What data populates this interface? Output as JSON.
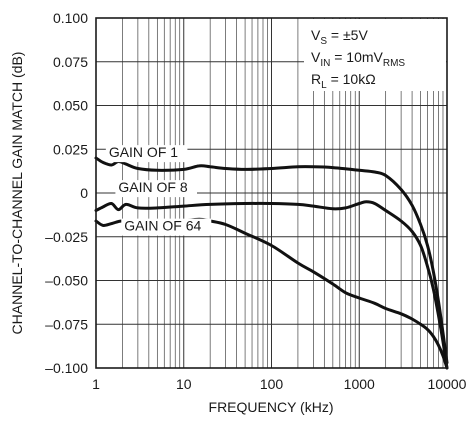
{
  "chart_data": {
    "type": "line",
    "title": "",
    "xlabel": "FREQUENCY (kHz)",
    "ylabel": "CHANNEL-TO-CHANNEL GAIN MATCH (dB)",
    "xscale": "log",
    "xlim": [
      1,
      10000
    ],
    "ylim": [
      -0.1,
      0.1
    ],
    "grid": true,
    "x_ticks": [
      {
        "value": 1,
        "label": "1"
      },
      {
        "value": 10,
        "label": "10"
      },
      {
        "value": 100,
        "label": "100"
      },
      {
        "value": 1000,
        "label": "1000"
      },
      {
        "value": 10000,
        "label": "10000"
      }
    ],
    "y_ticks": [
      {
        "value": 0.1,
        "label": "0.100"
      },
      {
        "value": 0.075,
        "label": "0.075"
      },
      {
        "value": 0.05,
        "label": "0.050"
      },
      {
        "value": 0.025,
        "label": "0.025"
      },
      {
        "value": 0,
        "label": "0"
      },
      {
        "value": -0.025,
        "label": "–0.025"
      },
      {
        "value": -0.05,
        "label": "–0.050"
      },
      {
        "value": -0.075,
        "label": "–0.075"
      },
      {
        "value": -0.1,
        "label": "–0.100"
      }
    ],
    "conditions": [
      {
        "main": "V",
        "sub": "S",
        "rest": " = ±5V"
      },
      {
        "main": "V",
        "sub": "IN",
        "rest": " = 10mV",
        "sub2": "RMS"
      },
      {
        "main": "R",
        "sub": "L",
        "rest": " = 10kΩ"
      }
    ],
    "series": [
      {
        "name": "GAIN OF 1",
        "points": [
          [
            1,
            0.02
          ],
          [
            1.2,
            0.0175
          ],
          [
            1.5,
            0.016
          ],
          [
            1.8,
            0.018
          ],
          [
            2.2,
            0.0165
          ],
          [
            3,
            0.014
          ],
          [
            5,
            0.013
          ],
          [
            10,
            0.0135
          ],
          [
            15,
            0.0155
          ],
          [
            20,
            0.015
          ],
          [
            30,
            0.014
          ],
          [
            50,
            0.0135
          ],
          [
            100,
            0.014
          ],
          [
            200,
            0.015
          ],
          [
            300,
            0.015
          ],
          [
            500,
            0.0145
          ],
          [
            1000,
            0.013
          ],
          [
            1500,
            0.012
          ],
          [
            2000,
            0.01
          ],
          [
            3000,
            0.002
          ],
          [
            4000,
            -0.007
          ],
          [
            5000,
            -0.018
          ],
          [
            6000,
            -0.03
          ],
          [
            7000,
            -0.045
          ],
          [
            8000,
            -0.062
          ],
          [
            9000,
            -0.08
          ],
          [
            10000,
            -0.097
          ]
        ]
      },
      {
        "name": "GAIN OF 8",
        "points": [
          [
            1,
            -0.01
          ],
          [
            1.2,
            -0.008
          ],
          [
            1.5,
            -0.006
          ],
          [
            1.8,
            -0.0095
          ],
          [
            2.2,
            -0.0065
          ],
          [
            3,
            -0.0085
          ],
          [
            5,
            -0.0085
          ],
          [
            10,
            -0.0075
          ],
          [
            20,
            -0.0065
          ],
          [
            50,
            -0.006
          ],
          [
            100,
            -0.006
          ],
          [
            200,
            -0.0065
          ],
          [
            300,
            -0.0075
          ],
          [
            500,
            -0.009
          ],
          [
            700,
            -0.0085
          ],
          [
            1000,
            -0.006
          ],
          [
            1200,
            -0.005
          ],
          [
            1500,
            -0.006
          ],
          [
            2000,
            -0.01
          ],
          [
            3000,
            -0.016
          ],
          [
            4000,
            -0.022
          ],
          [
            5000,
            -0.03
          ],
          [
            6000,
            -0.042
          ],
          [
            7000,
            -0.055
          ],
          [
            8000,
            -0.07
          ],
          [
            9000,
            -0.085
          ],
          [
            10000,
            -0.1
          ]
        ]
      },
      {
        "name": "GAIN OF 64",
        "points": [
          [
            1,
            -0.016
          ],
          [
            1.2,
            -0.0185
          ],
          [
            1.5,
            -0.0175
          ],
          [
            2,
            -0.016
          ],
          [
            2.5,
            -0.019
          ],
          [
            3,
            -0.019
          ],
          [
            5,
            -0.018
          ],
          [
            10,
            -0.016
          ],
          [
            15,
            -0.015
          ],
          [
            20,
            -0.016
          ],
          [
            30,
            -0.018
          ],
          [
            50,
            -0.023
          ],
          [
            100,
            -0.03
          ],
          [
            200,
            -0.04
          ],
          [
            300,
            -0.045
          ],
          [
            500,
            -0.052
          ],
          [
            700,
            -0.057
          ],
          [
            1000,
            -0.06
          ],
          [
            1500,
            -0.063
          ],
          [
            2000,
            -0.066
          ],
          [
            3000,
            -0.069
          ],
          [
            4000,
            -0.072
          ],
          [
            5000,
            -0.075
          ],
          [
            6000,
            -0.078
          ],
          [
            7000,
            -0.082
          ],
          [
            8000,
            -0.087
          ],
          [
            9000,
            -0.093
          ],
          [
            10000,
            -0.1
          ]
        ]
      }
    ],
    "series_labels": [
      {
        "text": "GAIN OF 1",
        "x": 1.4,
        "y": 0.0205
      },
      {
        "text": "GAIN OF 8",
        "x": 1.8,
        "y": 0.0005
      },
      {
        "text": "GAIN OF 64",
        "x": 2.1,
        "y": -0.0215
      }
    ]
  }
}
